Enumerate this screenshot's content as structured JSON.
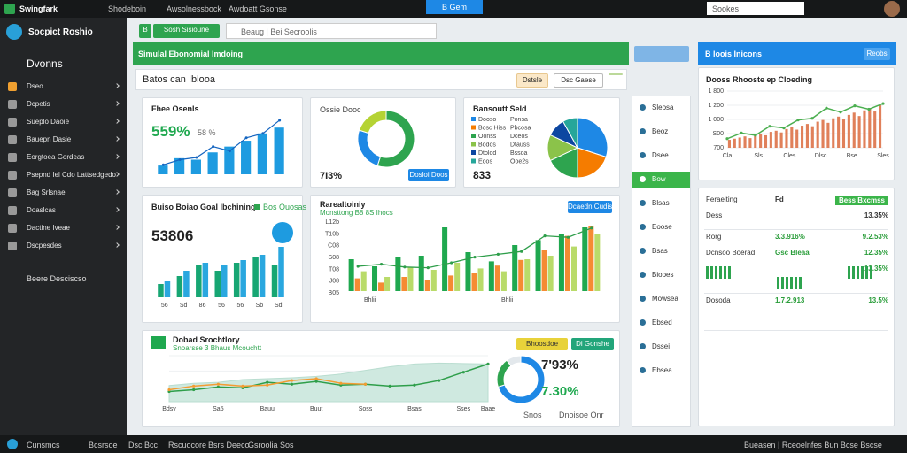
{
  "topbar": {
    "app": "Swingfark",
    "tabs": [
      "Shodeboin",
      "Awsolnessbock",
      "Awdoatt Gsonse"
    ],
    "active_tab": "B Gem",
    "search": "Sookes"
  },
  "sidebar": {
    "brand": "Socpict Roshio",
    "heading": "Dvonns",
    "items": [
      "Dseo",
      "Dcpetis",
      "Sueplo Daoie",
      "Bauepn Dasie",
      "Eorgtoea Gordeas",
      "Psepnd Iel Cdo Lattsedgedo",
      "Bag Srlsnae",
      "Doaslcas",
      "Dactine Iveae",
      "Dscpesdes"
    ],
    "footer": "Beere Desciscso"
  },
  "toolbar": {
    "button": "B",
    "tab": "Sosh Sisioune",
    "search": "Beaug | Bei Secroolis"
  },
  "header": {
    "title": "Simulal Ebonomial Imdoing",
    "right_title": "B loois Inicons",
    "right_button": "Reobs"
  },
  "subheader": {
    "title": "Batos can Iblooa",
    "buttons": [
      "Dstsle",
      "Dsc Gaese"
    ]
  },
  "kpi1": {
    "title": "Fhee Osenls",
    "value": "559%",
    "delta": "58 %",
    "ylim": [
      0,
      8
    ],
    "bars": [
      1.2,
      2.2,
      2.0,
      3.0,
      3.8,
      4.6,
      5.6,
      6.4
    ],
    "bar_color": "#1e9be0",
    "line": [
      1.3,
      2.0,
      2.3,
      3.8,
      3.2,
      5.0,
      5.6,
      7.4
    ],
    "line_color": "#1565c0"
  },
  "kpi2": {
    "type": "pie",
    "title": "Ossie Dooc",
    "value": "7I3%",
    "button": "Dosloi Doos",
    "values": [
      55,
      25,
      20
    ],
    "colors": [
      "#2ea44f",
      "#1e88e5",
      "#b5d334"
    ]
  },
  "kpi3": {
    "type": "pie",
    "title": "Bansoutt Seld",
    "value": "833",
    "categories": [
      "Dooso",
      "Bosc Hiss",
      "Oonss",
      "Bodos",
      "Dtolod",
      "Eoos"
    ],
    "legend_values": [
      "Ponsa",
      "Pbcosa",
      "Dceos",
      "Dtauss",
      "Bssoa",
      "Ooe2s"
    ],
    "values": [
      30,
      20,
      18,
      14,
      10,
      8
    ],
    "colors": [
      "#1e88e5",
      "#f57c00",
      "#2ea44f",
      "#8bc34a",
      "#0d47a1",
      "#26a69a"
    ]
  },
  "chart2": {
    "type": "bar",
    "title": "Buiso Boiao Goal Ibchining",
    "value": "53806",
    "legend": "Bos Ouosas",
    "ylim": [
      0,
      10
    ],
    "categories": [
      "56",
      "Sd",
      "86",
      "56",
      "56",
      "Sb",
      "Sd"
    ],
    "series": [
      {
        "color": "#17a673",
        "values": [
          2.5,
          4,
          6,
          5,
          6.5,
          7.5,
          6
        ]
      },
      {
        "color": "#2aa7df",
        "values": [
          3,
          5,
          6.5,
          6,
          7,
          8,
          9.5
        ]
      }
    ]
  },
  "chart3": {
    "type": "bar",
    "title": "Rarealtoiniy",
    "subtitle": "Monsttong B8 8S Ihocs",
    "button": "Dcaedn Cudiso",
    "y_labels": [
      "L12b",
      "T10b",
      "C08",
      "S08",
      "T08",
      "J08",
      "B05"
    ],
    "x_labels": [
      "Bhlii",
      "Bhlii"
    ],
    "ylim": [
      0,
      10
    ],
    "series": [
      {
        "color": "#1fa84f",
        "values": [
          4.5,
          3.5,
          4.8,
          5,
          9,
          5.5,
          4.2,
          6.5,
          7.2,
          8,
          9
        ]
      },
      {
        "color": "#f58b33",
        "values": [
          1.8,
          1.2,
          2,
          1.6,
          2.2,
          2.6,
          3.6,
          4.4,
          5.8,
          7.8,
          9.2
        ]
      },
      {
        "color": "#b9db6a",
        "values": [
          2.8,
          2,
          3.4,
          3,
          4,
          3.2,
          2.8,
          4.5,
          5,
          6.3,
          8
        ]
      }
    ],
    "line": [
      3.5,
      3.8,
      3.4,
      3.3,
      4,
      4.8,
      5.2,
      5.6,
      7.8,
      7.6,
      8.9
    ],
    "line_color": "#2e9e4a"
  },
  "chart4": {
    "type": "line",
    "title": "Dobad Srochtlory",
    "subtitle": "Snoarsse 3 Bhaus Mcouchtt",
    "buttons": [
      "Bhoosdoe",
      "Di Gonshe"
    ],
    "categories": [
      "Bdsv",
      null,
      "Sa5",
      null,
      "Bauu",
      null,
      "Buut",
      null,
      "Soss",
      null,
      "Bsas",
      null,
      "Sses",
      "Baae"
    ],
    "ylim": [
      0,
      10
    ],
    "area": [
      3.5,
      4,
      4.2,
      4.8,
      5,
      5.2,
      5.5,
      6,
      6.8,
      7.6,
      8.2,
      8.4,
      8.3,
      8.2
    ],
    "area_color": "#cfe9e0",
    "series": [
      {
        "color": "#2e9e4a",
        "values": [
          2.2,
          2.6,
          3.2,
          3.0,
          4.2,
          3.8,
          4.4,
          3.6,
          3.8,
          3.4,
          3.6,
          4.6,
          6.4,
          8.2
        ]
      },
      {
        "color": "#f39c33",
        "values": [
          2.6,
          3.4,
          3.8,
          3.4,
          3.6,
          4.6,
          5.0,
          4.0,
          3.8,
          null,
          null,
          null,
          null,
          null
        ]
      }
    ]
  },
  "gauge": {
    "type": "pie",
    "value1": "7'93%",
    "value2": "7.30%",
    "legend": [
      "Snos",
      "Dnoisoe Onr"
    ],
    "values": [
      70,
      20,
      10
    ],
    "colors": [
      "#1e88e5",
      "#2ea44f",
      "#e3e8ec"
    ]
  },
  "nav": {
    "items": [
      "Sleosa",
      "Beoz",
      "Dsee",
      "Bow",
      "Blsas",
      "Eoose",
      "Bsas",
      "Biooes",
      "Mowsea",
      "Ebsed",
      "Dssei",
      "Ebsea"
    ],
    "active": 3
  },
  "right_chart": {
    "title": "Dooss Rhooste ep Cloeding",
    "y_labels": [
      "1 800",
      "1 200",
      "1 000",
      "S00",
      "700"
    ],
    "x_labels": [
      "Cla",
      "Sls",
      "Cles",
      "Dlsc",
      "Bse",
      "Sles"
    ],
    "ylim": [
      0,
      10
    ],
    "bar_color": "#e0805a",
    "bars": [
      1.4,
      1.6,
      1.8,
      2.0,
      1.7,
      2.3,
      2.5,
      2.2,
      2.8,
      3.0,
      2.7,
      3.3,
      3.6,
      3.2,
      3.9,
      4.2,
      3.8,
      4.6,
      4.9,
      4.4,
      5.2,
      5.5,
      5.0,
      5.8,
      6.2,
      5.6,
      6.6,
      7.0,
      6.4,
      7.5
    ],
    "line": [
      1.6,
      2.6,
      2.2,
      3.8,
      3.5,
      4.9,
      5.2,
      7.0,
      6.3,
      7.4,
      6.8,
      7.8
    ],
    "line_color": "#4caf50"
  },
  "table": {
    "rows": [
      [
        "Feraeiting",
        "Fd",
        "Bess Bxcmss"
      ],
      [
        "Dess",
        "",
        "13.35%"
      ],
      [
        "Rorg",
        "3.3.916%",
        "9.2.53%"
      ],
      [
        "Dcnsoo Boerad",
        "Gsc Bleaa",
        "12.35%"
      ],
      [
        "",
        "",
        "13.35%"
      ],
      [
        "Dosoda",
        "1.7.2.913",
        "13.5%"
      ]
    ]
  },
  "bottombar": {
    "items": [
      "Cunsmcs",
      "Bcsrsoe",
      "Dsc Bcc",
      "Rscuocore",
      "Bsrs Deeco",
      "Gsroolia Sos"
    ],
    "right": "Bueasen | Rceoelnfes Bun Bcse Bscse"
  }
}
